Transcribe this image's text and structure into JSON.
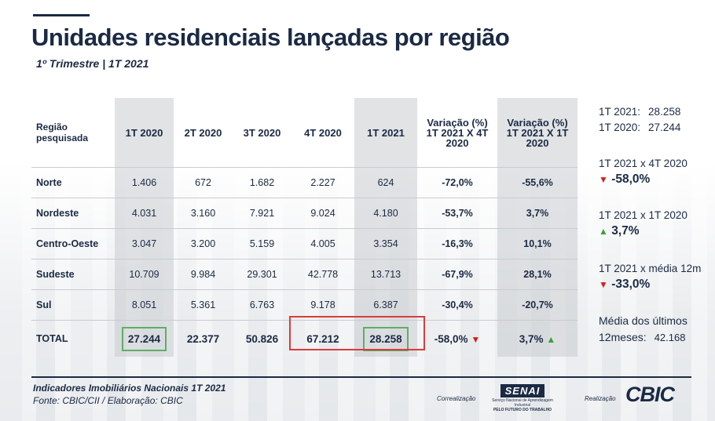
{
  "title": "Unidades residenciais lançadas por região",
  "subtitle": "1º Trimestre | 1T 2021",
  "table": {
    "region_header": "Região pesquisada",
    "headers": [
      "1T 2020",
      "2T 2020",
      "3T 2020",
      "4T 2020",
      "1T 2021"
    ],
    "var_label": "Variação (%)",
    "var1_header": "1T 2021 X 4T 2020",
    "var2_header": "1T 2021 X 1T 2020",
    "rows": [
      {
        "region": "Norte",
        "v": [
          "1.406",
          "672",
          "1.682",
          "2.227",
          "624"
        ],
        "var1": "-72,0%",
        "var2": "-55,6%"
      },
      {
        "region": "Nordeste",
        "v": [
          "4.031",
          "3.160",
          "7.921",
          "9.024",
          "4.180"
        ],
        "var1": "-53,7%",
        "var2": "3,7%"
      },
      {
        "region": "Centro-Oeste",
        "v": [
          "3.047",
          "3.200",
          "5.159",
          "4.005",
          "3.354"
        ],
        "var1": "-16,3%",
        "var2": "10,1%"
      },
      {
        "region": "Sudeste",
        "v": [
          "10.709",
          "9.984",
          "29.301",
          "42.778",
          "13.713"
        ],
        "var1": "-67,9%",
        "var2": "28,1%"
      },
      {
        "region": "Sul",
        "v": [
          "8.051",
          "5.361",
          "6.763",
          "9.178",
          "6.387"
        ],
        "var1": "-30,4%",
        "var2": "-20,7%"
      }
    ],
    "total": {
      "region": "TOTAL",
      "v": [
        "27.244",
        "22.377",
        "50.826",
        "67.212",
        "28.258"
      ],
      "var1": "-58,0%",
      "var2": "3,7%"
    }
  },
  "side": {
    "line1_label": "1T 2021:",
    "line1_value": "28.258",
    "line2_label": "1T 2020:",
    "line2_value": "27.244",
    "cmp1_label": "1T 2021 x 4T 2020",
    "cmp1_value": "-58,0%",
    "cmp2_label": "1T 2021 x 1T 2020",
    "cmp2_value": "3,7%",
    "cmp3_label": "1T 2021 x média 12m",
    "cmp3_value": "-33,0%",
    "avg_label1": "Média dos últimos",
    "avg_label2": "12meses:",
    "avg_value": "42.168"
  },
  "footer": {
    "line1": "Indicadores Imobiliários Nacionais 1T 2021",
    "line2": "Fonte: CBIC/CII / Elaboração: CBIC",
    "corr": "Correalização",
    "senai_logo": "SENAI",
    "senai_small1": "Serviço Nacional de Aprendizagem Industrial",
    "senai_small2": "PELO FUTURO DO TRABALHO",
    "real": "Realização",
    "cbic": "CBIC"
  },
  "colors": {
    "navy": "#1b2a44",
    "down": "#d31f1f",
    "up": "#3aa03a",
    "highlight_green": "#5fae66",
    "highlight_red": "#d93b3b"
  }
}
